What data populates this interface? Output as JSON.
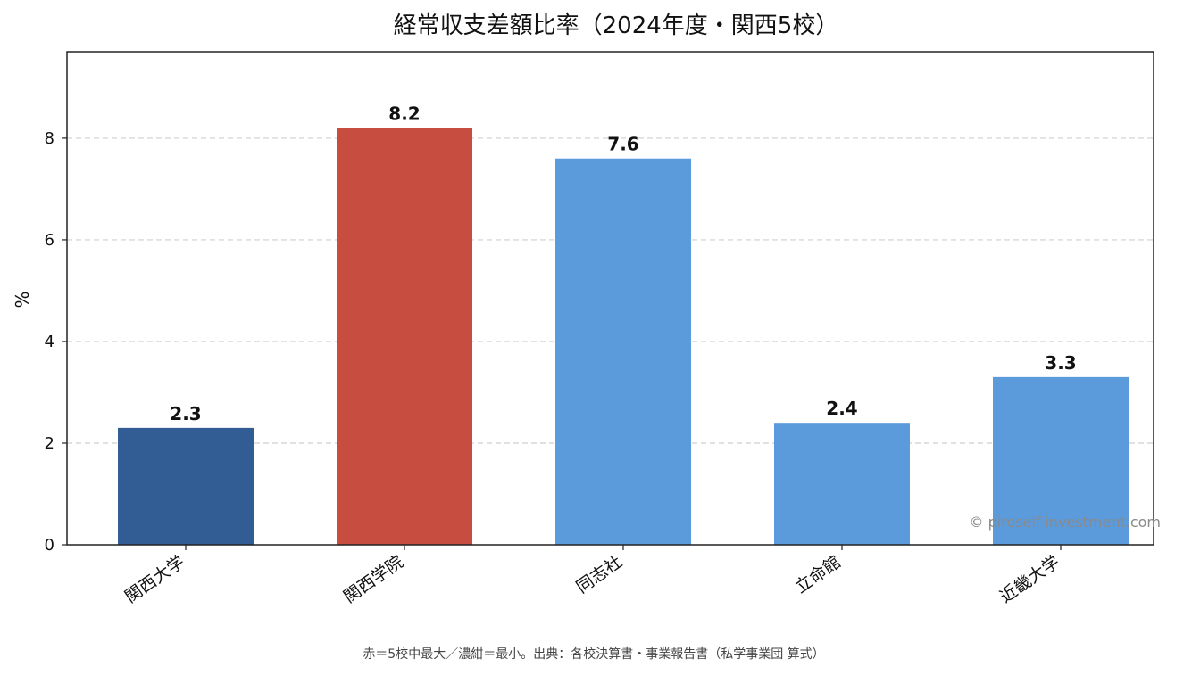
{
  "chart_data": {
    "type": "bar",
    "title": "経常収支差額比率（2024年度・関西5校）",
    "xlabel": "",
    "ylabel": "%",
    "ylim": [
      0,
      9.7
    ],
    "yticks": [
      0,
      2,
      4,
      6,
      8
    ],
    "grid": "horizontal dashed",
    "categories": [
      "関西大学",
      "関西学院",
      "同志社",
      "立命館",
      "近畿大学"
    ],
    "values": [
      2.3,
      8.2,
      7.6,
      2.4,
      3.3
    ],
    "data_labels": [
      "2.3",
      "8.2",
      "7.6",
      "2.4",
      "3.3"
    ],
    "colors": [
      "#325d94",
      "#c64d40",
      "#5c9bdb",
      "#5c9bdb",
      "#5c9bdb"
    ]
  },
  "watermark": "© piroself-investment.com",
  "footnote": "赤＝5校中最大／濃紺＝最小。出典：各校決算書・事業報告書（私学事業団 算式）"
}
